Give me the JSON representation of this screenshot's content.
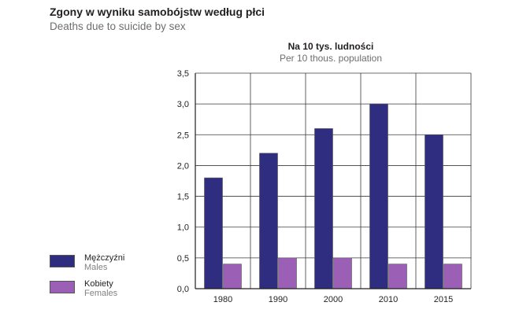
{
  "header": {
    "title": "Zgony w wyniku samobójstw według płci",
    "subtitle": "Deaths due to suicide by sex"
  },
  "chart_data": {
    "type": "bar",
    "unit_title": "Na 10 tys. ludności",
    "unit_subtitle": "Per 10 thous. population",
    "categories": [
      "1980",
      "1990",
      "2000",
      "2010",
      "2015"
    ],
    "series": [
      {
        "name": "Mężczyźni",
        "name_en": "Males",
        "color": "#2e2d7f",
        "values": [
          1.8,
          2.2,
          2.6,
          3.0,
          2.5
        ]
      },
      {
        "name": "Kobiety",
        "name_en": "Females",
        "color": "#9b5fb5",
        "values": [
          0.4,
          0.5,
          0.5,
          0.4,
          0.4
        ]
      }
    ],
    "ylim": [
      0,
      3.5
    ],
    "y_ticks": [
      "0,0",
      "0,5",
      "1,0",
      "1,5",
      "2,0",
      "2,5",
      "3,0",
      "3,5"
    ],
    "grid": true,
    "legend_position": "bottom-left"
  }
}
